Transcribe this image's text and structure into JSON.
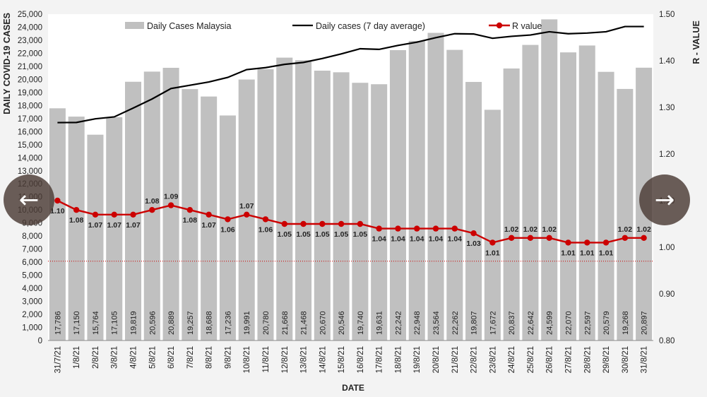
{
  "navigation": {
    "prev_icon": "←",
    "next_icon": "→"
  },
  "chart_data": {
    "type": "bar",
    "title": "",
    "xlabel": "DATE",
    "ylabel_left": "DAILY COVID-19 CASES",
    "ylabel_right": "R - VALUE",
    "categories": [
      "31/7/21",
      "1/8/21",
      "2/8/21",
      "3/8/21",
      "4/8/21",
      "5/8/21",
      "6/8/21",
      "7/8/21",
      "8/8/21",
      "9/8/21",
      "10/8/21",
      "11/8/21",
      "12/8/21",
      "13/8/21",
      "14/8/21",
      "15/8/21",
      "16/8/21",
      "17/8/21",
      "18/8/21",
      "19/8/21",
      "20/8/21",
      "21/8/21",
      "22/8/21",
      "23/8/21",
      "24/8/21",
      "25/8/21",
      "26/8/21",
      "27/8/21",
      "28/8/21",
      "29/8/21",
      "30/8/21",
      "31/8/21"
    ],
    "left_axis": {
      "min": 0,
      "max": 25000,
      "step": 1000
    },
    "right_axis": {
      "min": 0.8,
      "max": 1.5,
      "step": 0.1
    },
    "legend_placement": "top",
    "grid": false,
    "series": [
      {
        "name": "Daily Cases Malaysia",
        "kind": "bar",
        "axis": "left",
        "color": "#c0c0c0",
        "values": [
          17786,
          17150,
          15764,
          17105,
          19819,
          20596,
          20889,
          19257,
          18688,
          17236,
          19991,
          20780,
          21668,
          21468,
          20670,
          20546,
          19740,
          19631,
          22242,
          22948,
          23564,
          22262,
          19807,
          17672,
          20837,
          22642,
          24599,
          22070,
          22597,
          20579,
          19268,
          20897
        ],
        "labels": [
          "17,786",
          "17,150",
          "15,764",
          "17,105",
          "19,819",
          "20,596",
          "20,889",
          "19,257",
          "18,688",
          "17,236",
          "19,991",
          "20,780",
          "21,668",
          "21,468",
          "20,670",
          "20,546",
          "19,740",
          "19,631",
          "22,242",
          "22,948",
          "23,564",
          "22,262",
          "19,807",
          "17,672",
          "20,837",
          "22,642",
          "24,599",
          "22,070",
          "22,597",
          "20,579",
          "19,268",
          "20,897"
        ]
      },
      {
        "name": "Daily cases (7 day average)",
        "kind": "line",
        "axis": "left",
        "color": "#000000",
        "values": [
          16690,
          16700,
          16980,
          17130,
          17800,
          18500,
          19300,
          19550,
          19800,
          20150,
          20750,
          20900,
          21150,
          21300,
          21600,
          21950,
          22350,
          22300,
          22600,
          22850,
          23200,
          23500,
          23480,
          23150,
          23300,
          23400,
          23650,
          23500,
          23550,
          23650,
          24050,
          24050
        ]
      },
      {
        "name": "R value",
        "kind": "line",
        "axis": "right",
        "color": "#cc0000",
        "values": [
          1.1,
          1.08,
          1.07,
          1.07,
          1.07,
          1.08,
          1.09,
          1.08,
          1.07,
          1.06,
          1.07,
          1.06,
          1.05,
          1.05,
          1.05,
          1.05,
          1.05,
          1.04,
          1.04,
          1.04,
          1.04,
          1.04,
          1.03,
          1.01,
          1.02,
          1.02,
          1.02,
          1.01,
          1.01,
          1.01,
          1.02,
          1.02
        ],
        "labels": [
          "1.10",
          "1.08",
          "1.07",
          "1.07",
          "1.07",
          "1.08",
          "1.09",
          "1.08",
          "1.07",
          "1.06",
          "1.07",
          "1.06",
          "1.05",
          "1.05",
          "1.05",
          "1.05",
          "1.05",
          "1.04",
          "1.04",
          "1.04",
          "1.04",
          "1.04",
          "1.03",
          "1.01",
          "1.02",
          "1.02",
          "1.02",
          "1.01",
          "1.01",
          "1.01",
          "1.02",
          "1.02"
        ]
      }
    ],
    "reference_line": {
      "axis": "right",
      "value": 0.97,
      "color": "#cc0000",
      "style": "dotted"
    }
  }
}
